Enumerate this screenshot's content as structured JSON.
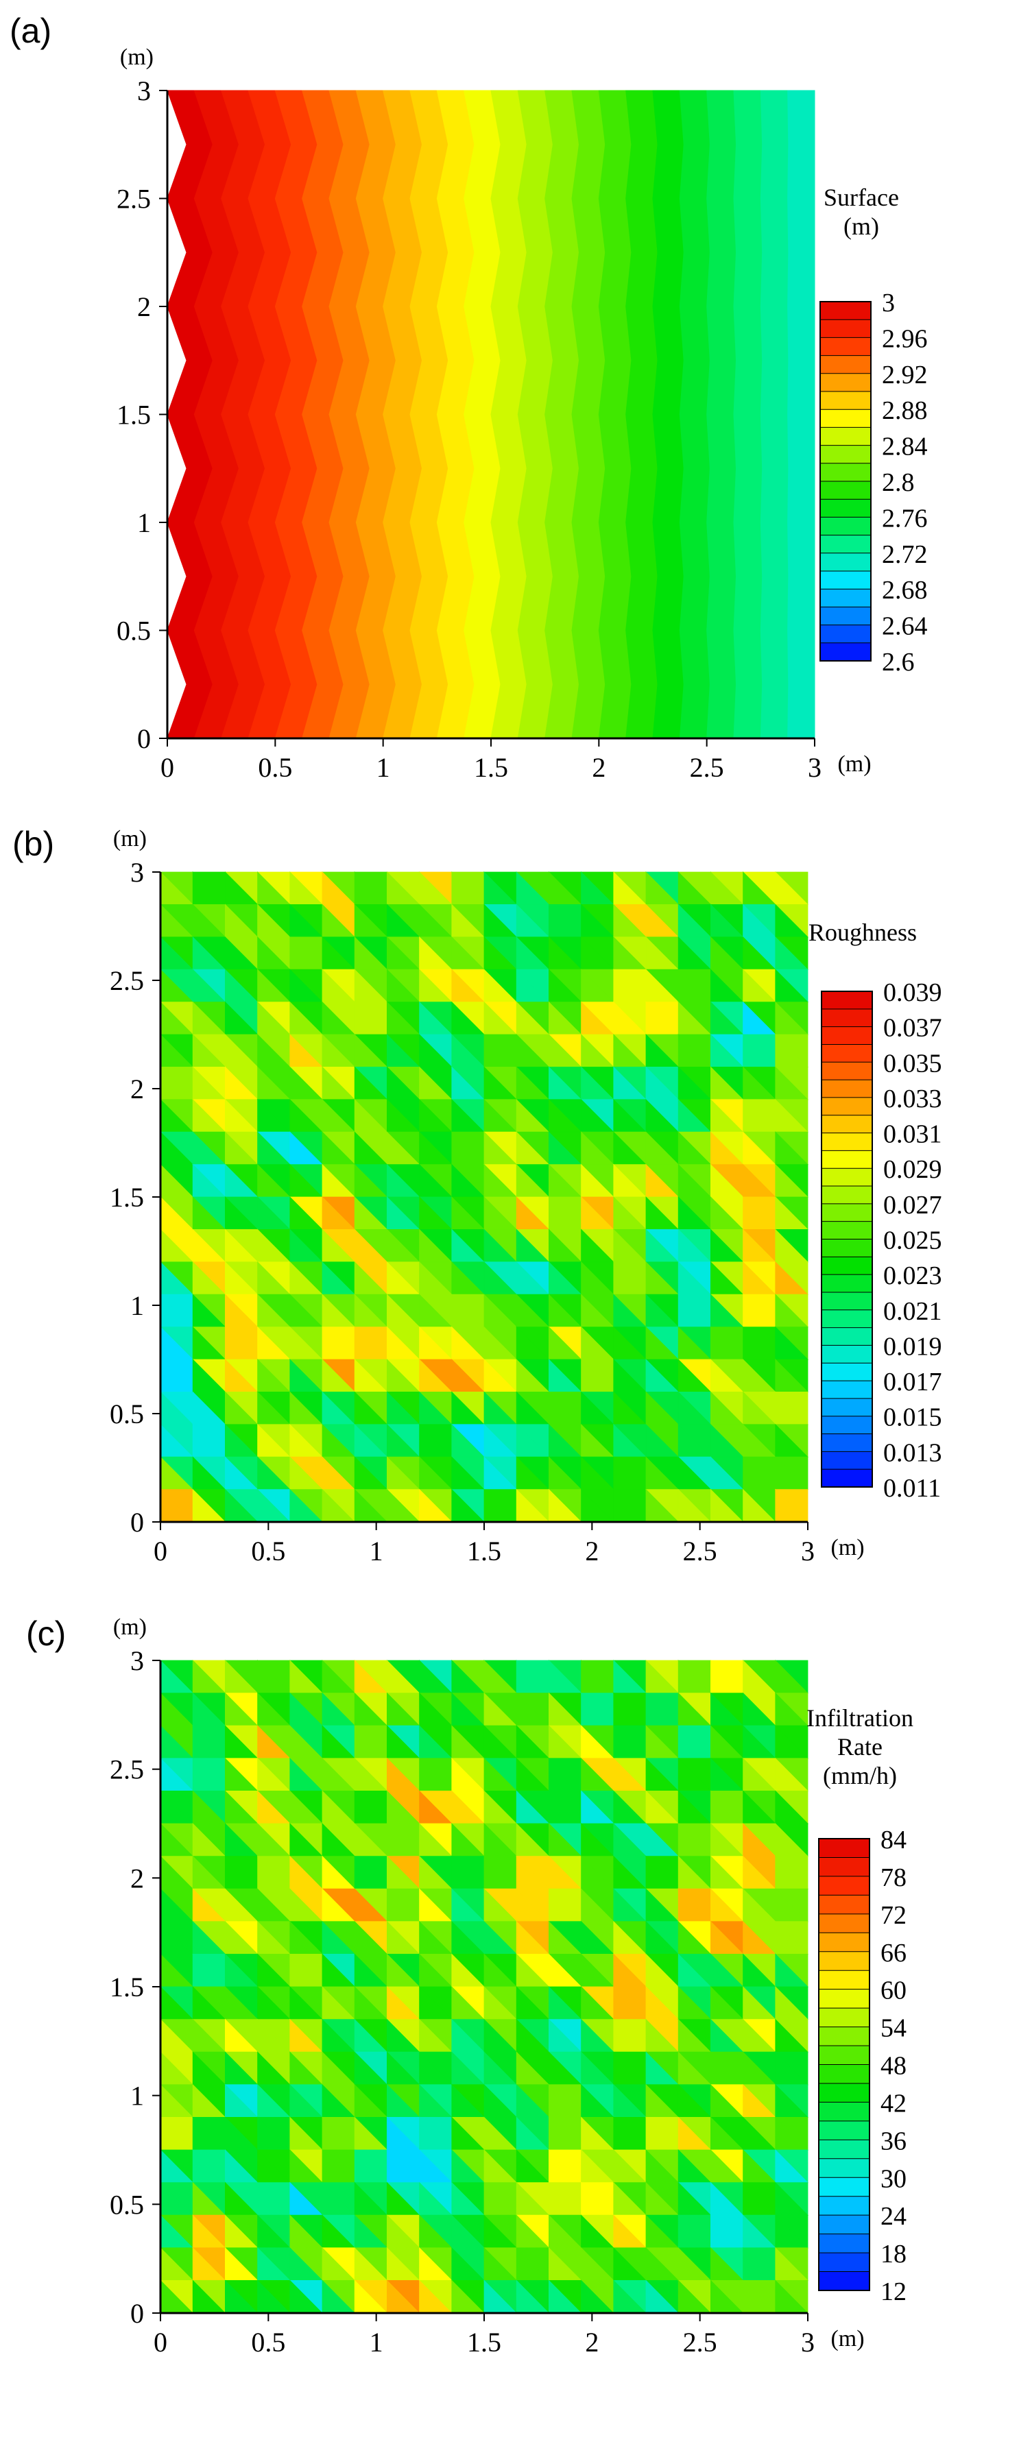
{
  "chart_data": [
    {
      "type": "heatmap",
      "panel_label": "(a)",
      "x_unit": "(m)",
      "y_unit": "(m)",
      "x_ticks": [
        "0",
        "0.5",
        "1",
        "1.5",
        "2",
        "2.5",
        "3"
      ],
      "y_ticks": [
        "0",
        "0.5",
        "1",
        "1.5",
        "2",
        "2.5",
        "3"
      ],
      "xlim": [
        0,
        3
      ],
      "ylim": [
        0,
        3
      ],
      "legend_title": [
        "Surface",
        "(m)"
      ],
      "legend_ticks": [
        "3",
        "2.96",
        "2.92",
        "2.88",
        "2.84",
        "2.8",
        "2.76",
        "2.72",
        "2.68",
        "2.64",
        "2.6"
      ],
      "color_range": [
        2.6,
        3.0
      ],
      "field": "surface elevation: about 3.0 m at x = 0 decreasing to about 2.70 m at x = 3, with a zig-zag contour pattern along y"
    },
    {
      "type": "heatmap",
      "panel_label": "(b)",
      "x_unit": "(m)",
      "y_unit": "(m)",
      "x_ticks": [
        "0",
        "0.5",
        "1",
        "1.5",
        "2",
        "2.5",
        "3"
      ],
      "y_ticks": [
        "0",
        "0.5",
        "1",
        "1.5",
        "2",
        "2.5",
        "3"
      ],
      "xlim": [
        0,
        3
      ],
      "ylim": [
        0,
        3
      ],
      "legend_title": [
        "Roughness"
      ],
      "legend_ticks": [
        "0.039",
        "0.037",
        "0.035",
        "0.033",
        "0.031",
        "0.029",
        "0.027",
        "0.025",
        "0.023",
        "0.021",
        "0.019",
        "0.017",
        "0.015",
        "0.013",
        "0.011"
      ],
      "color_range": [
        0.011,
        0.039
      ],
      "field": "spatially random roughness between 0.011 and 0.039"
    },
    {
      "type": "heatmap",
      "panel_label": "(c)",
      "x_unit": "(m)",
      "y_unit": "(m)",
      "x_ticks": [
        "0",
        "0.5",
        "1",
        "1.5",
        "2",
        "2.5",
        "3"
      ],
      "y_ticks": [
        "0",
        "0.5",
        "1",
        "1.5",
        "2",
        "2.5",
        "3"
      ],
      "xlim": [
        0,
        3
      ],
      "ylim": [
        0,
        3
      ],
      "legend_title": [
        "Infiltration",
        "Rate",
        "(mm/h)"
      ],
      "legend_ticks": [
        "84",
        "78",
        "72",
        "66",
        "60",
        "54",
        "48",
        "42",
        "36",
        "30",
        "24",
        "18",
        "12"
      ],
      "color_range": [
        12,
        84
      ],
      "field": "spatially random infiltration rate between 12 and 84 mm/h"
    }
  ],
  "colormap": [
    "#0000ff",
    "#0078ff",
    "#00e6ff",
    "#00f080",
    "#00e000",
    "#80f000",
    "#ffff00",
    "#ffa000",
    "#ff3000",
    "#e00000"
  ],
  "axis_color": "#000000"
}
